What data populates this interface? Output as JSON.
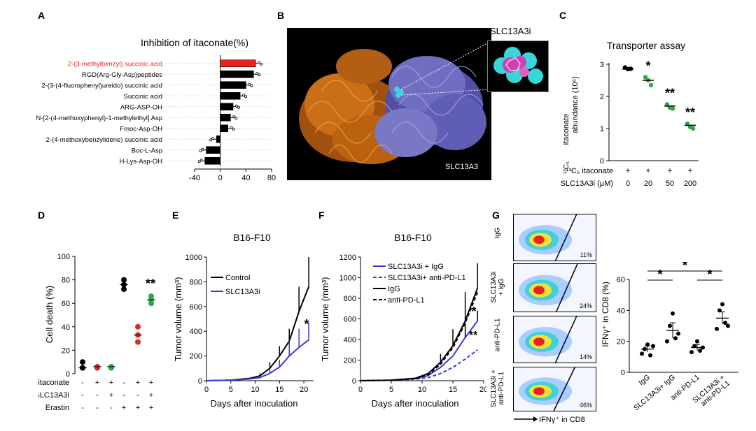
{
  "letters": {
    "A": "A",
    "B": "B",
    "C": "C",
    "D": "D",
    "E": "E",
    "F": "F",
    "G": "G"
  },
  "colors": {
    "black": "#000000",
    "red": "#e8231f",
    "green": "#2aa84a",
    "blue": "#3a3ad4",
    "orange": "#e07b1a",
    "purple": "#7d7ad6",
    "cyan": "#36d6d9",
    "magenta": "#d23fb5"
  },
  "panelA": {
    "chart_data": {
      "type": "bar",
      "title": "Inhibition of itaconate(%)",
      "categories": [
        "2-(3-methylbenzyl) succinic acid",
        "RGD(Arg-Gly-Asp)peptides",
        "2-(3-(4-fluorophenyl)ureido) succinic acid",
        "Succinic acid",
        "ARG-ASP-OH",
        "N-[2-(4-methoxyphenyl)-1-methylethyl] Asp",
        "Fmoc-Asp-OH",
        "2-(4-methoxybenzylidene) succinic acid",
        "Boc-L-Asp",
        "H-Lys-Asp-OH"
      ],
      "values": [
        55,
        52,
        40,
        31,
        20,
        16,
        12,
        -6,
        -22,
        -24
      ],
      "ticks": [
        "-40",
        "0",
        "40",
        "80"
      ],
      "xlim": [
        -40,
        80
      ],
      "highlight_index": 0
    }
  },
  "panelB": {
    "inset_label": "SLC13A3i",
    "structure_label": "SLC13A3"
  },
  "panelC": {
    "chart_data": {
      "type": "scatter",
      "title": "Transporter assay",
      "ylabel_line1": "itaconate",
      "ylabel_line2": "abundance (10⁶)",
      "ylabel_iso": "¹³C₅",
      "yticks": [
        "0",
        "1",
        "2",
        "3"
      ],
      "ylim": [
        0,
        3
      ],
      "conditions": [
        {
          "itaconate": "+",
          "dose": "0",
          "mean": 2.85,
          "points": [
            2.9,
            2.85,
            2.86
          ],
          "color": "black",
          "sig": ""
        },
        {
          "itaconate": "+",
          "dose": "20",
          "mean": 2.5,
          "points": [
            2.6,
            2.5,
            2.35
          ],
          "color": "green",
          "sig": "*"
        },
        {
          "itaconate": "+",
          "dose": "50",
          "mean": 1.7,
          "points": [
            1.75,
            1.65,
            1.62
          ],
          "color": "green",
          "sig": "**"
        },
        {
          "itaconate": "+",
          "dose": "200",
          "mean": 1.1,
          "points": [
            1.15,
            1.05,
            1.0
          ],
          "color": "green",
          "sig": "**"
        }
      ],
      "row1_label": "¹³C₅ itaconate",
      "row2_label": "SLC13A3i (μM)"
    }
  },
  "panelD": {
    "chart_data": {
      "type": "scatter",
      "ylabel": "Cell death (%)",
      "yticks": [
        "0",
        "20",
        "40",
        "60",
        "80",
        "100"
      ],
      "ylim": [
        0,
        100
      ],
      "groups": [
        {
          "points": [
            10,
            5,
            5
          ],
          "color": "black",
          "itaconate": "-",
          "slc": "-",
          "erastin": "-"
        },
        {
          "points": [
            5,
            6,
            5
          ],
          "color": "red",
          "itaconate": "+",
          "slc": "-",
          "erastin": "-"
        },
        {
          "points": [
            5,
            6,
            5
          ],
          "color": "green",
          "itaconate": "+",
          "slc": "+",
          "erastin": "-"
        },
        {
          "points": [
            80,
            76,
            72
          ],
          "color": "black",
          "itaconate": "-",
          "slc": "-",
          "erastin": "+"
        },
        {
          "points": [
            40,
            33,
            27
          ],
          "color": "red",
          "itaconate": "+",
          "slc": "-",
          "erastin": "+"
        },
        {
          "points": [
            66,
            63,
            60
          ],
          "color": "green",
          "itaconate": "+",
          "slc": "+",
          "erastin": "+"
        }
      ],
      "sig": "**",
      "row_labels": [
        "itaconate",
        "SLC13A3i",
        "Erastin"
      ]
    }
  },
  "panelE": {
    "chart_data": {
      "type": "line",
      "title": "B16-F10",
      "xlabel": "Days after inoculation",
      "ylabel": "Tumor volume (mm³)",
      "xticks": [
        "0",
        "5",
        "10",
        "15",
        "20"
      ],
      "yticks": [
        "0",
        "200",
        "400",
        "600",
        "800",
        "1000"
      ],
      "xlim": [
        0,
        22
      ],
      "ylim": [
        0,
        1000
      ],
      "series": [
        {
          "name": "Control",
          "color": "black",
          "x": [
            0,
            5,
            9,
            11,
            13,
            15,
            17,
            19,
            21
          ],
          "y": [
            0,
            5,
            20,
            40,
            100,
            200,
            320,
            560,
            760
          ],
          "err_top": [
            0,
            0,
            0,
            60,
            150,
            280,
            420,
            760,
            1000
          ]
        },
        {
          "name": "SLC13A3i",
          "color": "blue",
          "x": [
            0,
            5,
            9,
            11,
            13,
            15,
            17,
            19,
            21
          ],
          "y": [
            0,
            4,
            15,
            25,
            60,
            110,
            200,
            270,
            330
          ],
          "err_top": [
            0,
            0,
            0,
            40,
            90,
            170,
            320,
            420,
            470
          ]
        }
      ],
      "sig": "*"
    }
  },
  "panelF": {
    "chart_data": {
      "type": "line",
      "title": "B16-F10",
      "xlabel": "Days after inoculation",
      "ylabel": "Tumor volume (mm³)",
      "xticks": [
        "0",
        "5",
        "10",
        "15",
        "20"
      ],
      "yticks": [
        "0",
        "200",
        "400",
        "600",
        "800",
        "1000",
        "1200"
      ],
      "xlim": [
        0,
        20
      ],
      "ylim": [
        0,
        1200
      ],
      "series": [
        {
          "name": "SLC13A3i + IgG",
          "color": "blue",
          "dash": false,
          "x": [
            0,
            5,
            9,
            11,
            13,
            15,
            17,
            19
          ],
          "y": [
            0,
            5,
            20,
            50,
            130,
            240,
            420,
            580
          ]
        },
        {
          "name": "SLC13A3i+ anti-PD-L1",
          "color": "blue",
          "dash": true,
          "x": [
            0,
            5,
            9,
            11,
            13,
            15,
            17,
            19
          ],
          "y": [
            0,
            4,
            15,
            30,
            70,
            130,
            210,
            300
          ]
        },
        {
          "name": "IgG",
          "color": "black",
          "dash": false,
          "x": [
            0,
            5,
            9,
            11,
            13,
            15,
            17,
            19
          ],
          "y": [
            0,
            5,
            25,
            70,
            180,
            340,
            580,
            900
          ]
        },
        {
          "name": "anti-PD-L1",
          "color": "black",
          "dash": true,
          "x": [
            0,
            5,
            9,
            11,
            13,
            15,
            17,
            19
          ],
          "y": [
            0,
            5,
            22,
            60,
            160,
            320,
            560,
            860
          ]
        }
      ],
      "sig_top": "*",
      "sig_bottom": "**"
    }
  },
  "panelG": {
    "flow": [
      {
        "label": "IgG",
        "pct": "11%"
      },
      {
        "label": "SLC13A3i\n+ IgG",
        "pct": "24%"
      },
      {
        "label": "anti-PD-L1",
        "pct": "14%"
      },
      {
        "label": "SLC13A3i +\nanti-PD-L1",
        "pct": "46%"
      }
    ],
    "axis_label": "IFNγ⁺ in CD8",
    "chart_data": {
      "type": "scatter",
      "ylabel": "IFNγ⁺ in CD8 (%)",
      "yticks": [
        "0",
        "20",
        "40",
        "60"
      ],
      "ylim": [
        0,
        60
      ],
      "categories": [
        "IgG",
        "SLC13A3i+ IgG",
        "anti-PD-L1",
        "SLC13A3i +\nanti-PD-L1"
      ],
      "groups": [
        {
          "mean": 15,
          "sem": 2,
          "points": [
            12,
            15,
            18,
            11,
            17
          ]
        },
        {
          "mean": 27,
          "sem": 5,
          "points": [
            20,
            30,
            38,
            22,
            25
          ]
        },
        {
          "mean": 16,
          "sem": 2,
          "points": [
            13,
            17,
            20,
            14,
            16
          ]
        },
        {
          "mean": 35,
          "sem": 4,
          "points": [
            28,
            40,
            44,
            32,
            30
          ]
        }
      ],
      "sig": "*"
    }
  }
}
